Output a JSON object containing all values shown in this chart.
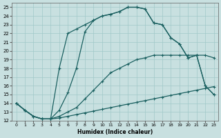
{
  "xlabel": "Humidex (Indice chaleur)",
  "bg_color": "#c8e0e0",
  "grid_color": "#a0c8c8",
  "line_color": "#1a6060",
  "xlim": [
    -0.5,
    23.5
  ],
  "ylim": [
    12,
    25.5
  ],
  "xticks": [
    0,
    1,
    2,
    3,
    4,
    5,
    6,
    7,
    8,
    9,
    10,
    11,
    12,
    13,
    14,
    15,
    16,
    17,
    18,
    19,
    20,
    21,
    22,
    23
  ],
  "yticks": [
    12,
    13,
    14,
    15,
    16,
    17,
    18,
    19,
    20,
    21,
    22,
    23,
    24,
    25
  ],
  "line1_x": [
    0,
    1,
    2,
    3,
    4,
    4,
    5,
    6,
    7,
    8,
    9,
    10,
    11,
    12,
    13,
    14,
    15,
    16,
    17,
    18,
    19,
    20,
    21,
    22,
    23
  ],
  "line1_y": [
    14.0,
    13.2,
    12.5,
    12.2,
    12.2,
    12.2,
    18.0,
    22.0,
    22.5,
    23.0,
    23.5,
    24.0,
    24.2,
    24.5,
    25.0,
    25.0,
    24.8,
    23.2,
    23.0,
    21.5,
    20.8,
    19.2,
    19.5,
    16.0,
    15.0
  ],
  "line2_x": [
    0,
    1,
    2,
    3,
    4,
    5,
    6,
    7,
    8,
    9,
    10,
    11,
    12,
    13,
    14,
    15,
    16,
    17,
    18,
    19,
    20,
    21,
    22,
    23
  ],
  "line2_y": [
    14.0,
    13.2,
    12.5,
    12.2,
    12.2,
    13.2,
    15.2,
    18.0,
    22.2,
    23.5,
    24.0,
    24.2,
    24.5,
    25.0,
    25.0,
    24.8,
    23.2,
    23.0,
    21.5,
    20.8,
    19.2,
    19.5,
    16.0,
    15.0
  ],
  "line3_x": [
    0,
    1,
    2,
    3,
    4,
    5,
    6,
    7,
    8,
    9,
    10,
    11,
    12,
    13,
    14,
    15,
    16,
    17,
    18,
    19,
    20,
    21,
    22,
    23
  ],
  "line3_y": [
    14.0,
    13.2,
    12.5,
    12.2,
    12.2,
    12.5,
    13.0,
    13.5,
    14.5,
    15.5,
    16.5,
    17.5,
    18.0,
    18.5,
    19.0,
    19.2,
    19.5,
    19.5,
    19.5,
    19.5,
    19.5,
    19.5,
    19.5,
    19.2
  ],
  "line4_x": [
    0,
    1,
    2,
    3,
    4,
    5,
    6,
    7,
    8,
    9,
    10,
    11,
    12,
    13,
    14,
    15,
    16,
    17,
    18,
    19,
    20,
    21,
    22,
    23
  ],
  "line4_y": [
    14.0,
    13.2,
    12.5,
    12.2,
    12.2,
    12.3,
    12.5,
    12.7,
    12.9,
    13.1,
    13.3,
    13.5,
    13.7,
    13.9,
    14.1,
    14.3,
    14.5,
    14.7,
    14.9,
    15.1,
    15.3,
    15.5,
    15.7,
    15.9
  ]
}
